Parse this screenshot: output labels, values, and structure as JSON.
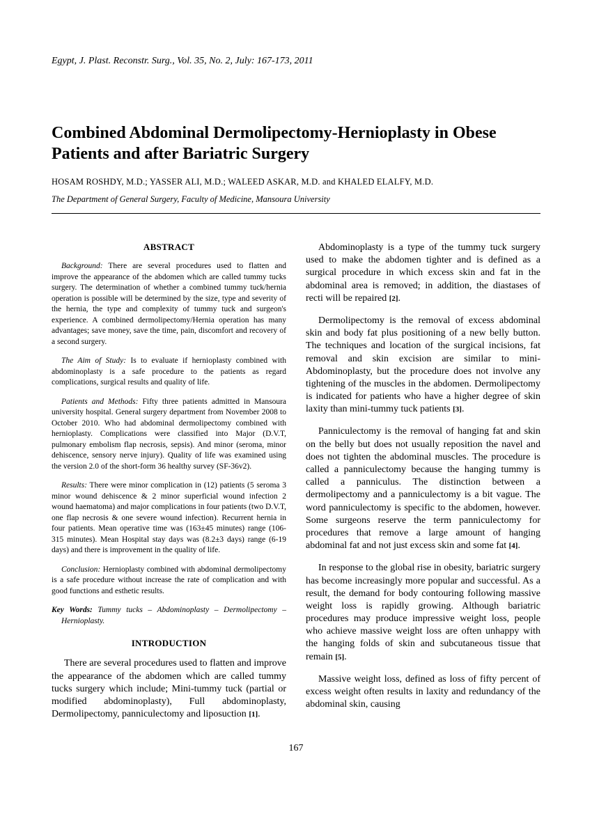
{
  "journal_ref": "Egypt, J. Plast. Reconstr. Surg., Vol. 35, No. 2, July: 167-173, 2011",
  "title": "Combined Abdominal Dermolipectomy-Hernioplasty in Obese Patients and after Bariatric Surgery",
  "authors": "HOSAM ROSHDY, M.D.; YASSER ALI, M.D.; WALEED ASKAR, M.D. and KHALED ELALFY, M.D.",
  "affiliation": "The Department of General Surgery, Faculty of Medicine, Mansoura University",
  "abstract_heading": "ABSTRACT",
  "abstract": {
    "p1_lead": "Background:",
    "p1": " There are several procedures used to flatten and improve the appearance of the abdomen which are called tummy tucks surgery. The determination of whether a combined tummy tuck/hernia operation is possible will be determined by the size, type and severity of the hernia, the type and complexity of tummy tuck and surgeon's experience. A combined dermolipectomy/Hernia operation has many advantages; save money, save the time, pain, discomfort and recovery of a second surgery.",
    "p2_lead": "The Aim of Study:",
    "p2": " Is to evaluate if hernioplasty combined with abdominoplasty is a safe procedure to the patients as regard complications, surgical results and quality of life.",
    "p3_lead": "Patients and Methods:",
    "p3": " Fifty three patients admitted in Mansoura university hospital. General surgery department from November 2008 to October 2010. Who had abdominal dermolipectomy combined with hernioplasty. Complications were classified into Major (D.V.T, pulmonary embolism flap necrosis, sepsis). And minor (seroma, minor dehiscence, sensory nerve injury). Quality of life was examined using the version 2.0 of the short-form 36 healthy survey (SF-36v2).",
    "p4_lead": "Results:",
    "p4": " There were minor complication in (12) patients (5 seroma 3 minor wound dehiscence & 2 minor superficial wound infection 2 wound haematoma) and major complications in four patients (two D.V.T, one flap necrosis & one severe wound infection). Recurrent hernia in four patients. Mean operative time was (163±45 minutes) range (106-315 minutes). Mean Hospital stay days was (8.2±3 days) range (6-19 days) and there is improvement in the quality of life.",
    "p5_lead": "Conclusion:",
    "p5": " Hernioplasty combined with abdominal dermolipectomy is a safe procedure without increase the rate of complication and with good functions and esthetic results."
  },
  "keywords_label": "Key Words:",
  "keywords_text": " Tummy tucks – Abdominoplasty – Dermolipectomy – Hernioplasty.",
  "intro_heading": "INTRODUCTION",
  "intro": {
    "p1": "There are several procedures used to flatten and improve the appearance of the abdomen which are called tummy tucks surgery which include; Mini-tummy tuck (partial or modified abdominoplasty), Full abdominoplasty, Dermolipectomy, panniculectomy and liposuction ",
    "p1_ref": "[1]",
    "p2": "Abdominoplasty is a type of the tummy tuck surgery used to make the abdomen tighter and is defined as a surgical procedure in which excess skin and fat in the abdominal area is removed; in addition, the diastases of recti will be repaired ",
    "p2_ref": "[2]",
    "p3": "Dermolipectomy is the removal of excess abdominal skin and body fat plus positioning of a new belly button. The techniques and location of the surgical incisions, fat removal and skin excision are similar to mini-Abdominoplasty, but the procedure does not involve any tightening of the muscles in the abdomen. Dermolipectomy is indicated for patients who have a higher degree of skin laxity than mini-tummy tuck patients ",
    "p3_ref": "[3]",
    "p4": "Panniculectomy is the removal of hanging fat and skin on the belly but does not usually reposition the navel and does not tighten the abdominal muscles. The procedure is called a panniculectomy because the hanging tummy is called a panniculus. The distinction between a dermolipectomy and a panniculectomy is a bit vague. The word panniculectomy is specific to the abdomen, however. Some surgeons reserve the term panniculectomy for procedures that remove a large amount of hanging abdominal fat and not just excess skin and some fat ",
    "p4_ref": "[4]",
    "p5": "In response to the global rise in obesity, bariatric surgery has become increasingly more popular and successful. As a result, the demand for body contouring following massive weight loss is rapidly growing. Although bariatric procedures may produce impressive weight loss, people who achieve massive weight loss are often unhappy with the hanging folds of skin and subcutaneous tissue that remain ",
    "p5_ref": "[5]",
    "p6": "Massive weight loss, defined as loss of fifty percent of excess weight often results in laxity and redundancy of the abdominal skin, causing"
  },
  "page_number": "167"
}
